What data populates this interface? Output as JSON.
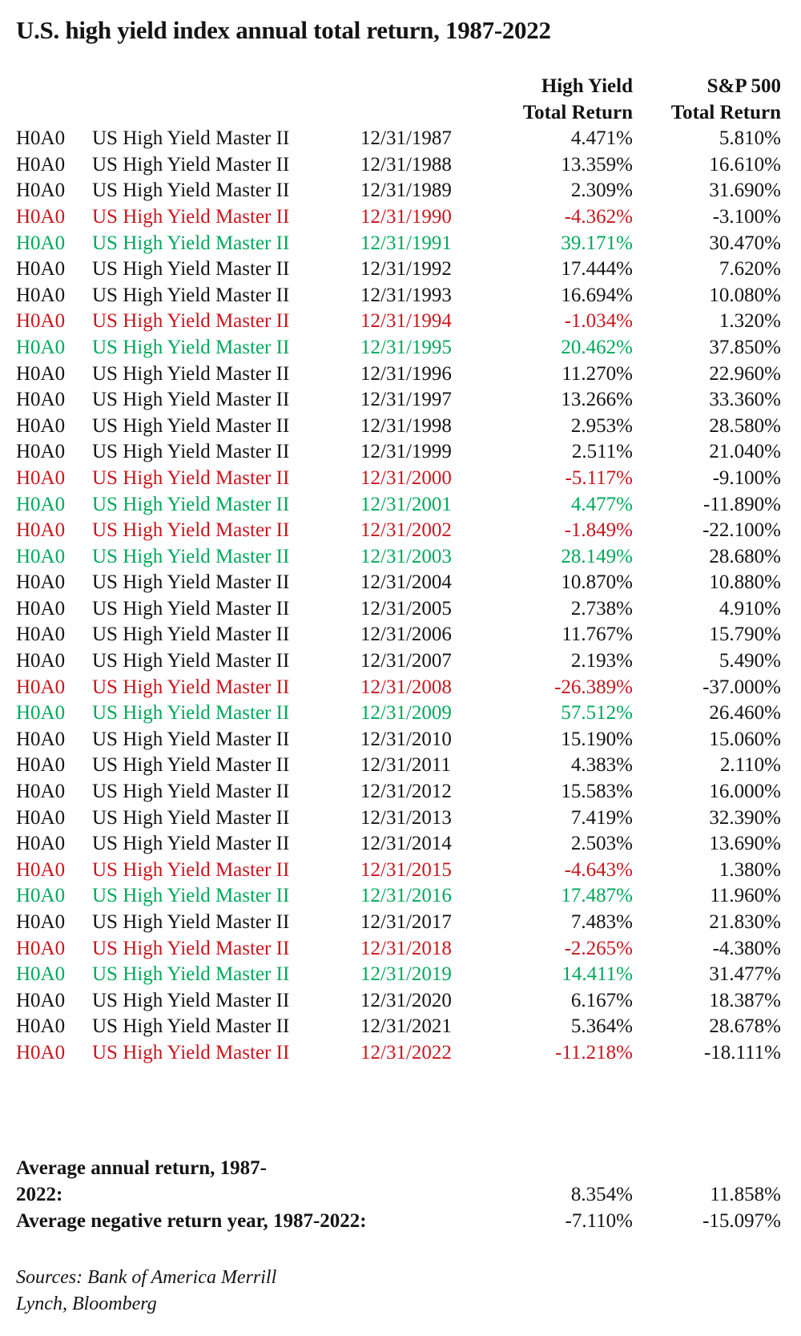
{
  "title": "U.S. high yield index annual total return, 1987-2022",
  "colors": {
    "default_text": "#141414",
    "negative_year_red": "#C9161E",
    "rebound_year_green": "#00A85A"
  },
  "table": {
    "column_headers": {
      "high_yield_line1": "High Yield",
      "high_yield_line2": "Total Return",
      "sp500_line1": "S&P 500",
      "sp500_line2": "Total Return"
    },
    "rows": [
      {
        "ticker": "H0A0",
        "name": "US High Yield Master II",
        "date": "12/31/1987",
        "high_yield_return": "4.471%",
        "sp500_return": "5.810%",
        "color": "default"
      },
      {
        "ticker": "H0A0",
        "name": "US High Yield Master II",
        "date": "12/31/1988",
        "high_yield_return": "13.359%",
        "sp500_return": "16.610%",
        "color": "default"
      },
      {
        "ticker": "H0A0",
        "name": "US High Yield Master II",
        "date": "12/31/1989",
        "high_yield_return": "2.309%",
        "sp500_return": "31.690%",
        "color": "default"
      },
      {
        "ticker": "H0A0",
        "name": "US High Yield Master II",
        "date": "12/31/1990",
        "high_yield_return": "-4.362%",
        "sp500_return": "-3.100%",
        "color": "negative"
      },
      {
        "ticker": "H0A0",
        "name": "US High Yield Master II",
        "date": "12/31/1991",
        "high_yield_return": "39.171%",
        "sp500_return": "30.470%",
        "color": "rebound"
      },
      {
        "ticker": "H0A0",
        "name": "US High Yield Master II",
        "date": "12/31/1992",
        "high_yield_return": "17.444%",
        "sp500_return": "7.620%",
        "color": "default"
      },
      {
        "ticker": "H0A0",
        "name": "US High Yield Master II",
        "date": "12/31/1993",
        "high_yield_return": "16.694%",
        "sp500_return": "10.080%",
        "color": "default"
      },
      {
        "ticker": "H0A0",
        "name": "US High Yield Master II",
        "date": "12/31/1994",
        "high_yield_return": "-1.034%",
        "sp500_return": "1.320%",
        "color": "negative"
      },
      {
        "ticker": "H0A0",
        "name": "US High Yield Master II",
        "date": "12/31/1995",
        "high_yield_return": "20.462%",
        "sp500_return": "37.850%",
        "color": "rebound"
      },
      {
        "ticker": "H0A0",
        "name": "US High Yield Master II",
        "date": "12/31/1996",
        "high_yield_return": "11.270%",
        "sp500_return": "22.960%",
        "color": "default"
      },
      {
        "ticker": "H0A0",
        "name": "US High Yield Master II",
        "date": "12/31/1997",
        "high_yield_return": "13.266%",
        "sp500_return": "33.360%",
        "color": "default"
      },
      {
        "ticker": "H0A0",
        "name": "US High Yield Master II",
        "date": "12/31/1998",
        "high_yield_return": "2.953%",
        "sp500_return": "28.580%",
        "color": "default"
      },
      {
        "ticker": "H0A0",
        "name": "US High Yield Master II",
        "date": "12/31/1999",
        "high_yield_return": "2.511%",
        "sp500_return": "21.040%",
        "color": "default"
      },
      {
        "ticker": "H0A0",
        "name": "US High Yield Master II",
        "date": "12/31/2000",
        "high_yield_return": "-5.117%",
        "sp500_return": "-9.100%",
        "color": "negative"
      },
      {
        "ticker": "H0A0",
        "name": "US High Yield Master II",
        "date": "12/31/2001",
        "high_yield_return": "4.477%",
        "sp500_return": "-11.890%",
        "color": "rebound"
      },
      {
        "ticker": "H0A0",
        "name": "US High Yield Master II",
        "date": "12/31/2002",
        "high_yield_return": "-1.849%",
        "sp500_return": "-22.100%",
        "color": "negative"
      },
      {
        "ticker": "H0A0",
        "name": "US High Yield Master II",
        "date": "12/31/2003",
        "high_yield_return": "28.149%",
        "sp500_return": "28.680%",
        "color": "rebound"
      },
      {
        "ticker": "H0A0",
        "name": "US High Yield Master II",
        "date": "12/31/2004",
        "high_yield_return": "10.870%",
        "sp500_return": "10.880%",
        "color": "default"
      },
      {
        "ticker": "H0A0",
        "name": "US High Yield Master II",
        "date": "12/31/2005",
        "high_yield_return": "2.738%",
        "sp500_return": "4.910%",
        "color": "default"
      },
      {
        "ticker": "H0A0",
        "name": "US High Yield Master II",
        "date": "12/31/2006",
        "high_yield_return": "11.767%",
        "sp500_return": "15.790%",
        "color": "default"
      },
      {
        "ticker": "H0A0",
        "name": "US High Yield Master II",
        "date": "12/31/2007",
        "high_yield_return": "2.193%",
        "sp500_return": "5.490%",
        "color": "default"
      },
      {
        "ticker": "H0A0",
        "name": "US High Yield Master II",
        "date": "12/31/2008",
        "high_yield_return": "-26.389%",
        "sp500_return": "-37.000%",
        "color": "negative"
      },
      {
        "ticker": "H0A0",
        "name": "US High Yield Master II",
        "date": "12/31/2009",
        "high_yield_return": "57.512%",
        "sp500_return": "26.460%",
        "color": "rebound"
      },
      {
        "ticker": "H0A0",
        "name": "US High Yield Master II",
        "date": "12/31/2010",
        "high_yield_return": "15.190%",
        "sp500_return": "15.060%",
        "color": "default"
      },
      {
        "ticker": "H0A0",
        "name": "US High Yield Master II",
        "date": "12/31/2011",
        "high_yield_return": "4.383%",
        "sp500_return": "2.110%",
        "color": "default"
      },
      {
        "ticker": "H0A0",
        "name": "US High Yield Master II",
        "date": "12/31/2012",
        "high_yield_return": "15.583%",
        "sp500_return": "16.000%",
        "color": "default"
      },
      {
        "ticker": "H0A0",
        "name": "US High Yield Master II",
        "date": "12/31/2013",
        "high_yield_return": "7.419%",
        "sp500_return": "32.390%",
        "color": "default"
      },
      {
        "ticker": "H0A0",
        "name": "US High Yield Master II",
        "date": "12/31/2014",
        "high_yield_return": "2.503%",
        "sp500_return": "13.690%",
        "color": "default"
      },
      {
        "ticker": "H0A0",
        "name": "US High Yield Master II",
        "date": "12/31/2015",
        "high_yield_return": "-4.643%",
        "sp500_return": "1.380%",
        "color": "negative"
      },
      {
        "ticker": "H0A0",
        "name": "US High Yield Master II",
        "date": "12/31/2016",
        "high_yield_return": "17.487%",
        "sp500_return": "11.960%",
        "color": "rebound"
      },
      {
        "ticker": "H0A0",
        "name": "US High Yield Master II",
        "date": "12/31/2017",
        "high_yield_return": "7.483%",
        "sp500_return": "21.830%",
        "color": "default"
      },
      {
        "ticker": "H0A0",
        "name": "US High Yield Master II",
        "date": "12/31/2018",
        "high_yield_return": "-2.265%",
        "sp500_return": "-4.380%",
        "color": "negative"
      },
      {
        "ticker": "H0A0",
        "name": "US High Yield Master II",
        "date": "12/31/2019",
        "high_yield_return": "14.411%",
        "sp500_return": "31.477%",
        "color": "rebound"
      },
      {
        "ticker": "H0A0",
        "name": "US High Yield Master II",
        "date": "12/31/2020",
        "high_yield_return": "6.167%",
        "sp500_return": "18.387%",
        "color": "default"
      },
      {
        "ticker": "H0A0",
        "name": "US High Yield Master II",
        "date": "12/31/2021",
        "high_yield_return": "5.364%",
        "sp500_return": "28.678%",
        "color": "default"
      },
      {
        "ticker": "H0A0",
        "name": "US High Yield Master II",
        "date": "12/31/2022",
        "high_yield_return": "-11.218%",
        "sp500_return": "-18.111%",
        "color": "negative"
      }
    ]
  },
  "summary": {
    "average_annual": {
      "label_line1": "Average annual return, 1987-",
      "label_line2": "2022:",
      "high_yield": "8.354%",
      "sp500": "11.858%"
    },
    "average_negative": {
      "label": "Average negative return year, 1987-2022:",
      "high_yield": "-7.110%",
      "sp500": "-15.097%"
    }
  },
  "sources_line1": "Sources: Bank of America Merrill",
  "sources_line2": "Lynch, Bloomberg"
}
